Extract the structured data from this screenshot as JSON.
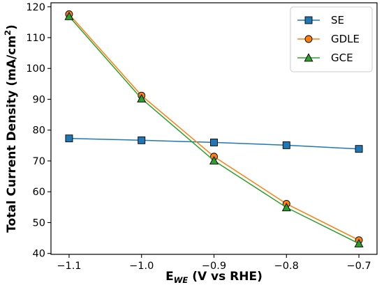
{
  "chart_data": {
    "type": "line",
    "xlabel": {
      "main": "E",
      "sub": "WE",
      "rest": " (V vs RHE)"
    },
    "ylabel": {
      "main": "Total Current Density (mA/cm",
      "sup": "2",
      "end": ")"
    },
    "xlim": [
      -1.125,
      -0.675
    ],
    "ylim": [
      39.7,
      121.3
    ],
    "xticks": [
      -1.1,
      -1.0,
      -0.9,
      -0.8,
      -0.7
    ],
    "xtick_labels": [
      "−1.1",
      "−1.0",
      "−0.9",
      "−0.8",
      "−0.7"
    ],
    "yticks": [
      40,
      50,
      60,
      70,
      80,
      90,
      100,
      110,
      120
    ],
    "ytick_labels": [
      "40",
      "50",
      "60",
      "70",
      "80",
      "90",
      "100",
      "110",
      "120"
    ],
    "grid": false,
    "legend_position": "top-right",
    "x": [
      -1.1,
      -1.0,
      -0.9,
      -0.8,
      -0.7
    ],
    "series": [
      {
        "name": "SE",
        "values": [
          77.3,
          76.7,
          76.0,
          75.1,
          73.9
        ],
        "color": "#1f77b4",
        "marker": "square"
      },
      {
        "name": "GDLE",
        "values": [
          117.6,
          91.2,
          71.4,
          56.1,
          44.3
        ],
        "color": "#ff7f0e",
        "marker": "circle"
      },
      {
        "name": "GCE",
        "values": [
          116.9,
          90.2,
          70.1,
          54.9,
          43.2
        ],
        "color": "#2ca02c",
        "marker": "triangle"
      }
    ]
  }
}
